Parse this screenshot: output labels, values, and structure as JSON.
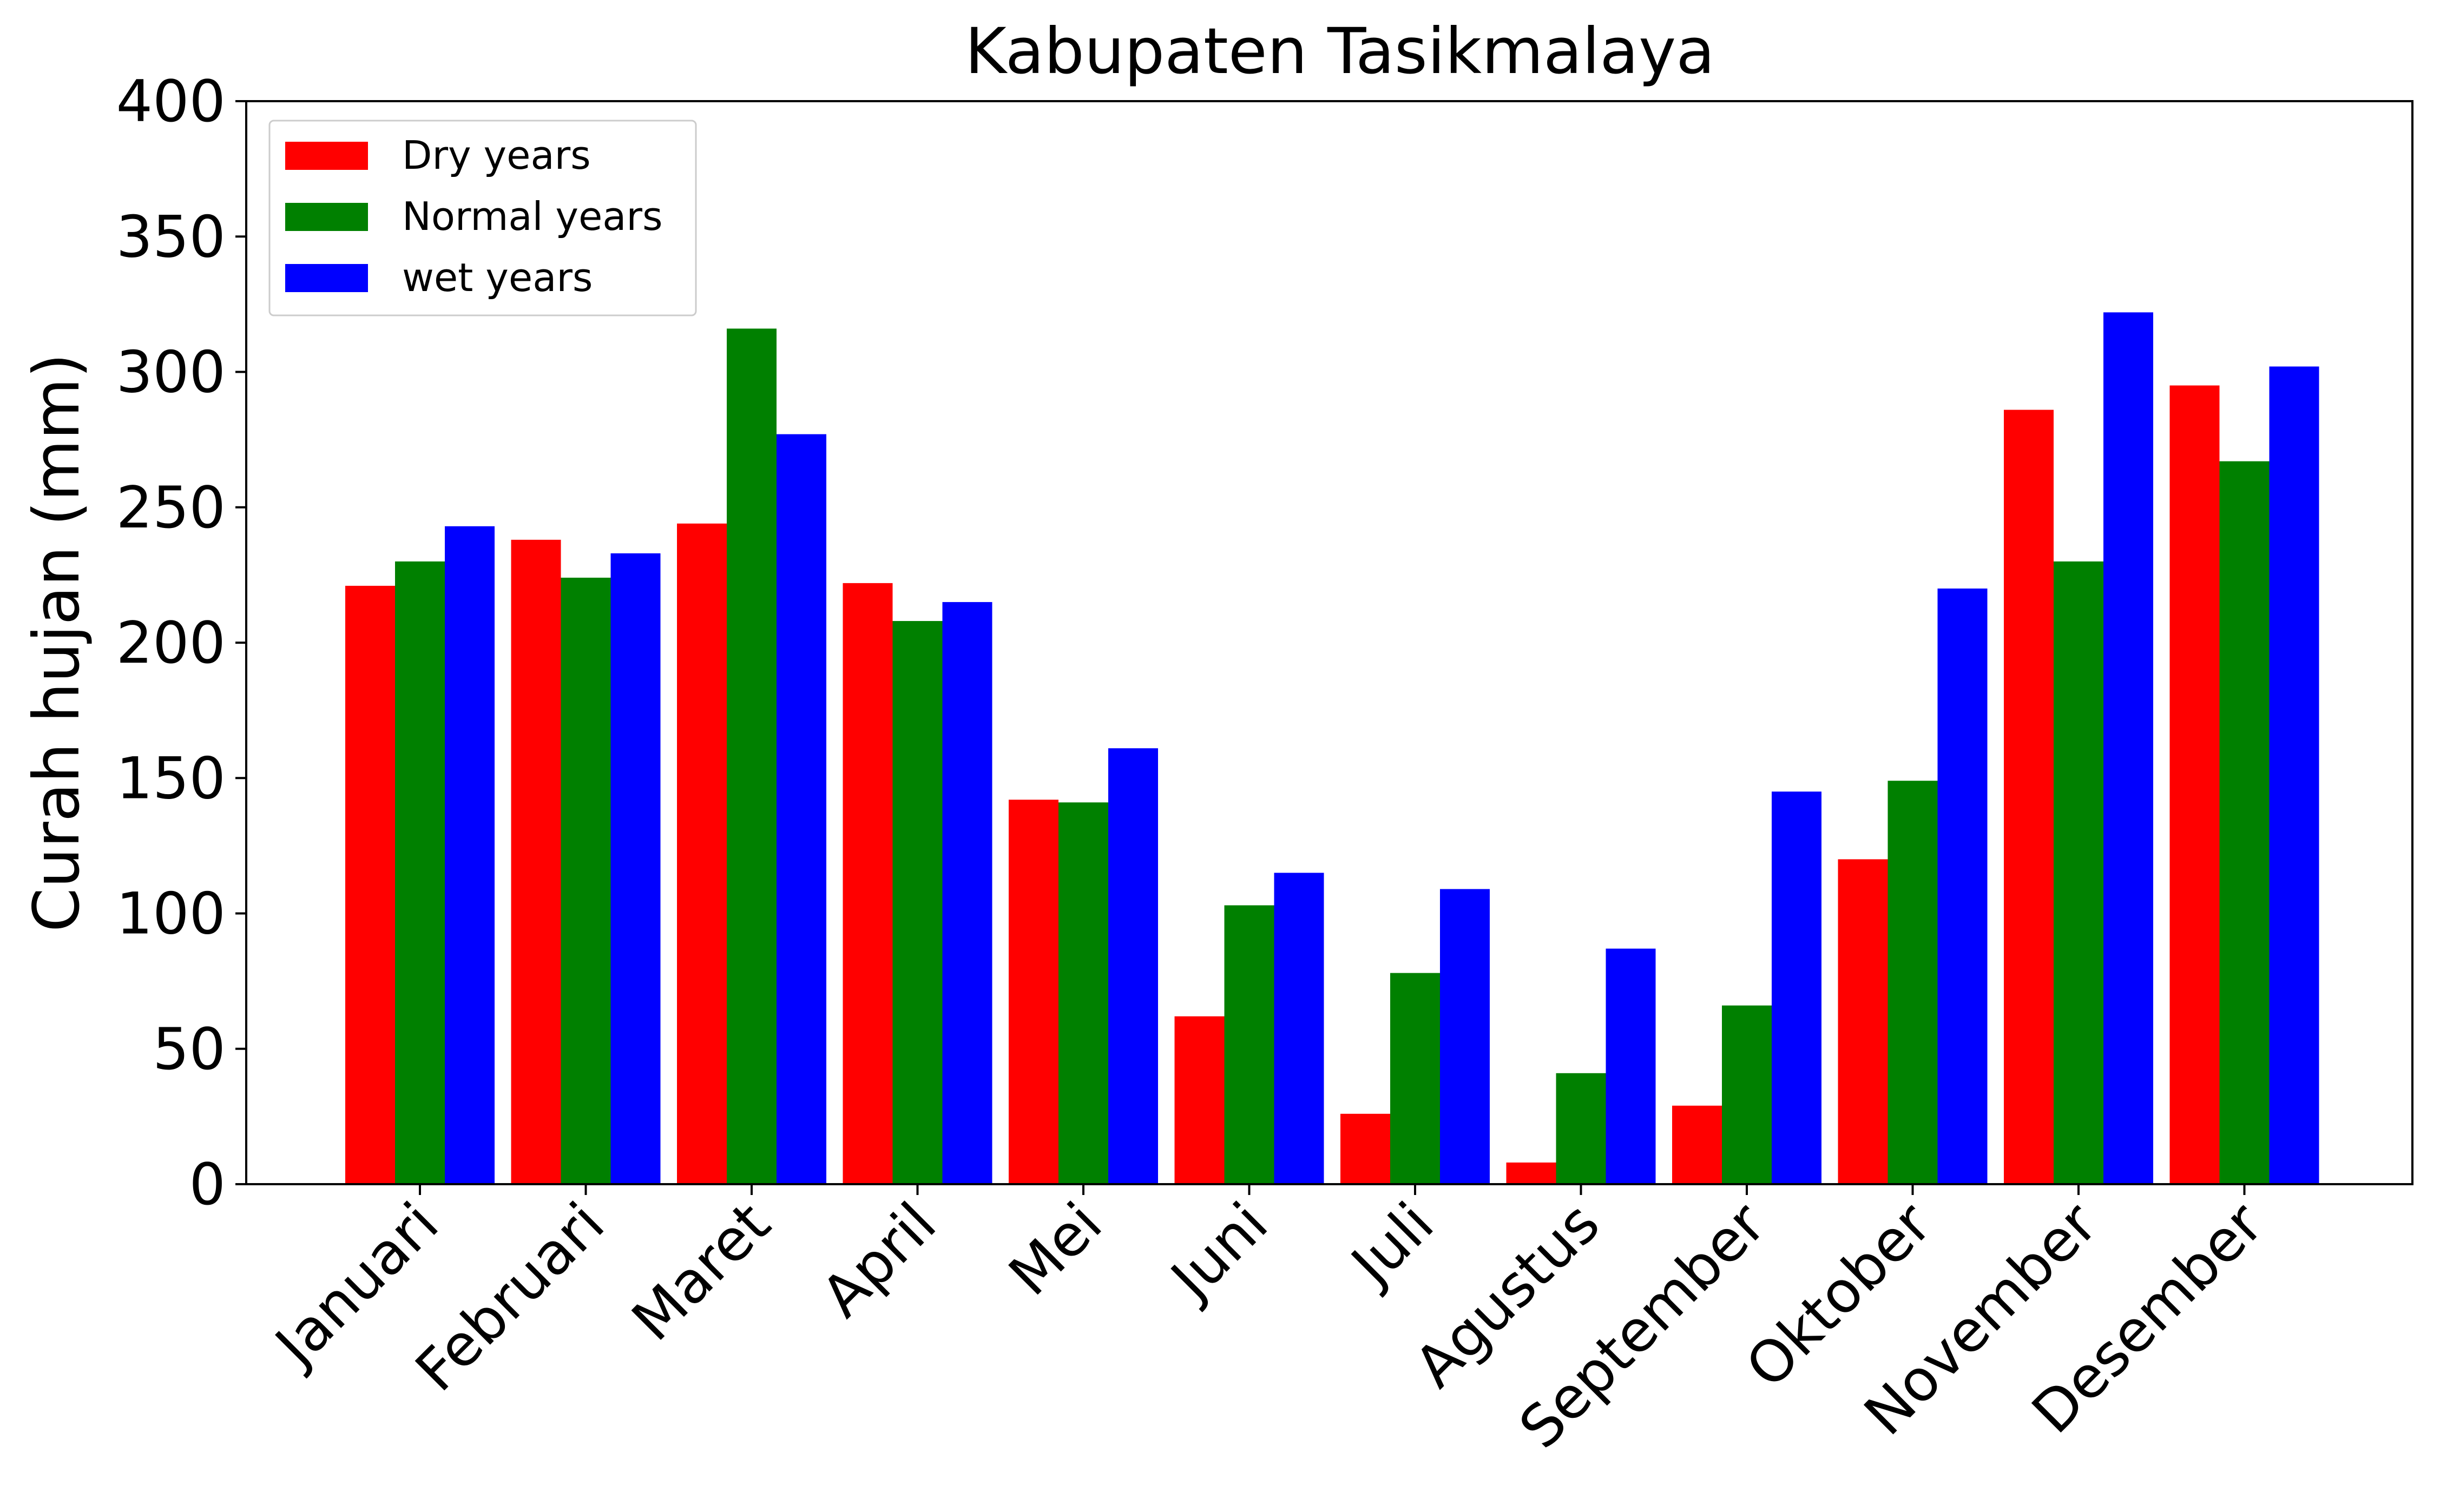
{
  "chart_data": {
    "type": "bar",
    "title": "Kabupaten Tasikmalaya",
    "xlabel": "",
    "ylabel": "Curah hujan (mm)",
    "ylim": [
      0,
      400
    ],
    "yticks": [
      0,
      50,
      100,
      150,
      200,
      250,
      300,
      350,
      400
    ],
    "categories": [
      "Januari",
      "Februari",
      "Maret",
      "April",
      "Mei",
      "Juni",
      "Juli",
      "Agustus",
      "September",
      "Oktober",
      "November",
      "Desember"
    ],
    "series": [
      {
        "name": "Dry years",
        "color": "#ff0000",
        "values": [
          221,
          238,
          244,
          222,
          142,
          62,
          26,
          8,
          29,
          120,
          286,
          295
        ]
      },
      {
        "name": "Normal years",
        "color": "#008000",
        "values": [
          230,
          224,
          316,
          208,
          141,
          103,
          78,
          41,
          66,
          149,
          230,
          267
        ]
      },
      {
        "name": "wet years",
        "color": "#0000ff",
        "values": [
          243,
          233,
          277,
          215,
          161,
          115,
          109,
          87,
          145,
          220,
          322,
          302
        ]
      }
    ],
    "legend_position": "top-left",
    "grid": false,
    "x_tick_rotation_deg": 45
  }
}
